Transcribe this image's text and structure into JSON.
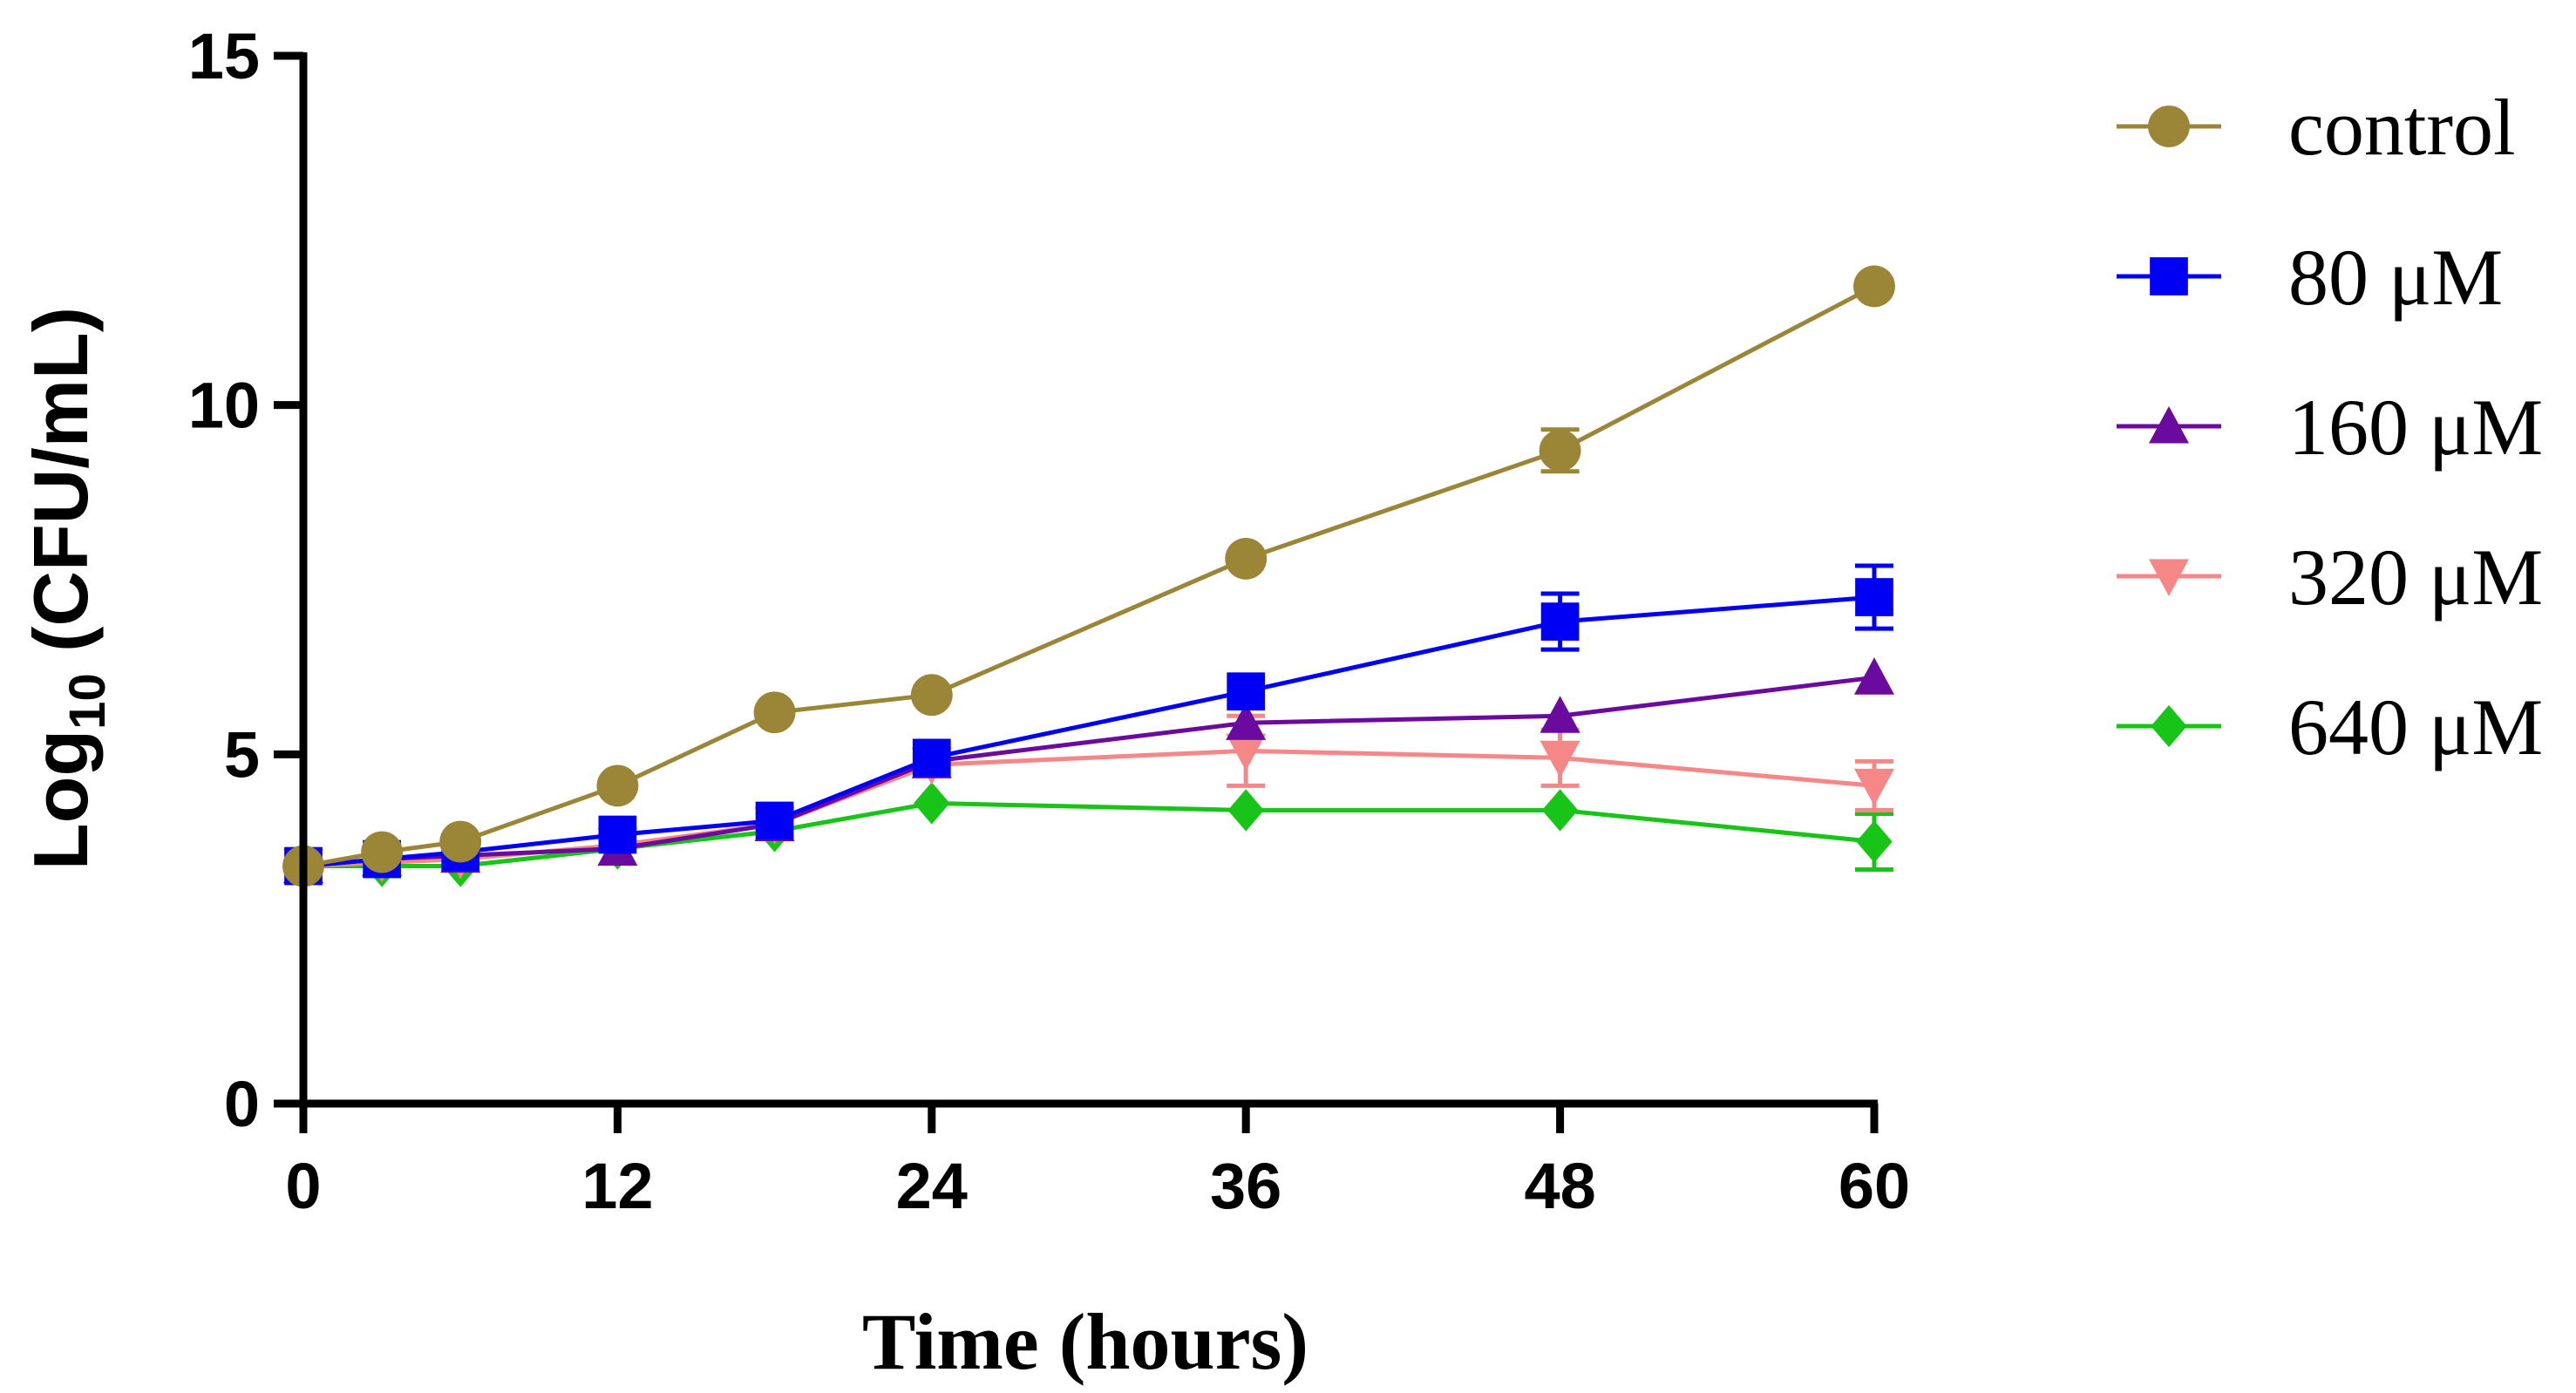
{
  "chart_data": {
    "type": "line",
    "title": "",
    "xlabel": "Time (hours)",
    "ylabel_main": "Log",
    "ylabel_sub": "10",
    "ylabel_rest": " (CFU/mL)",
    "xlim": [
      0,
      60
    ],
    "ylim": [
      0,
      15
    ],
    "xticks": [
      0,
      12,
      24,
      36,
      48,
      60
    ],
    "xtick_labels": [
      "0",
      "12",
      "24",
      "36",
      "48",
      "60"
    ],
    "yticks": [
      0,
      5,
      10,
      15
    ],
    "ytick_labels": [
      "0",
      "5",
      "10",
      "15"
    ],
    "grid": false,
    "legend_position": "right",
    "series": [
      {
        "name": "control",
        "color": "#9B8537",
        "marker": "circle",
        "x": [
          0,
          3,
          6,
          12,
          18,
          24,
          36,
          48,
          60
        ],
        "y": [
          3.4,
          3.6,
          3.75,
          4.55,
          5.6,
          5.85,
          7.8,
          9.35,
          11.7
        ],
        "err": [
          0,
          0,
          0,
          0,
          0,
          0,
          0,
          0.3,
          0
        ]
      },
      {
        "name": "80 μM",
        "color": "#0000F5",
        "marker": "square",
        "x": [
          0,
          3,
          6,
          12,
          18,
          24,
          36,
          48,
          60
        ],
        "y": [
          3.4,
          3.5,
          3.6,
          3.85,
          4.05,
          4.95,
          5.9,
          6.9,
          7.25
        ],
        "err": [
          0,
          0,
          0,
          0,
          0,
          0,
          0,
          0.4,
          0.45
        ]
      },
      {
        "name": "160 μM",
        "color": "#6A0A9E",
        "marker": "triangle-up",
        "x": [
          0,
          3,
          6,
          12,
          18,
          24,
          36,
          48,
          60
        ],
        "y": [
          3.4,
          3.5,
          3.55,
          3.65,
          4.0,
          4.9,
          5.45,
          5.55,
          6.1
        ],
        "err": [
          0,
          0,
          0,
          0,
          0,
          0,
          0,
          0,
          0
        ]
      },
      {
        "name": "320 μM",
        "color": "#F58787",
        "marker": "triangle-down",
        "x": [
          0,
          3,
          6,
          12,
          18,
          24,
          36,
          48,
          60
        ],
        "y": [
          3.4,
          3.45,
          3.5,
          3.7,
          4.0,
          4.85,
          5.05,
          4.95,
          4.55
        ],
        "err": [
          0,
          0,
          0,
          0,
          0,
          0,
          0.5,
          0.4,
          0.35
        ]
      },
      {
        "name": "640 μM",
        "color": "#18C418",
        "marker": "diamond",
        "x": [
          0,
          3,
          6,
          12,
          18,
          24,
          36,
          48,
          60
        ],
        "y": [
          3.4,
          3.4,
          3.4,
          3.65,
          3.9,
          4.3,
          4.2,
          4.2,
          3.75
        ],
        "err": [
          0,
          0,
          0,
          0,
          0,
          0,
          0,
          0,
          0.4
        ]
      }
    ]
  }
}
